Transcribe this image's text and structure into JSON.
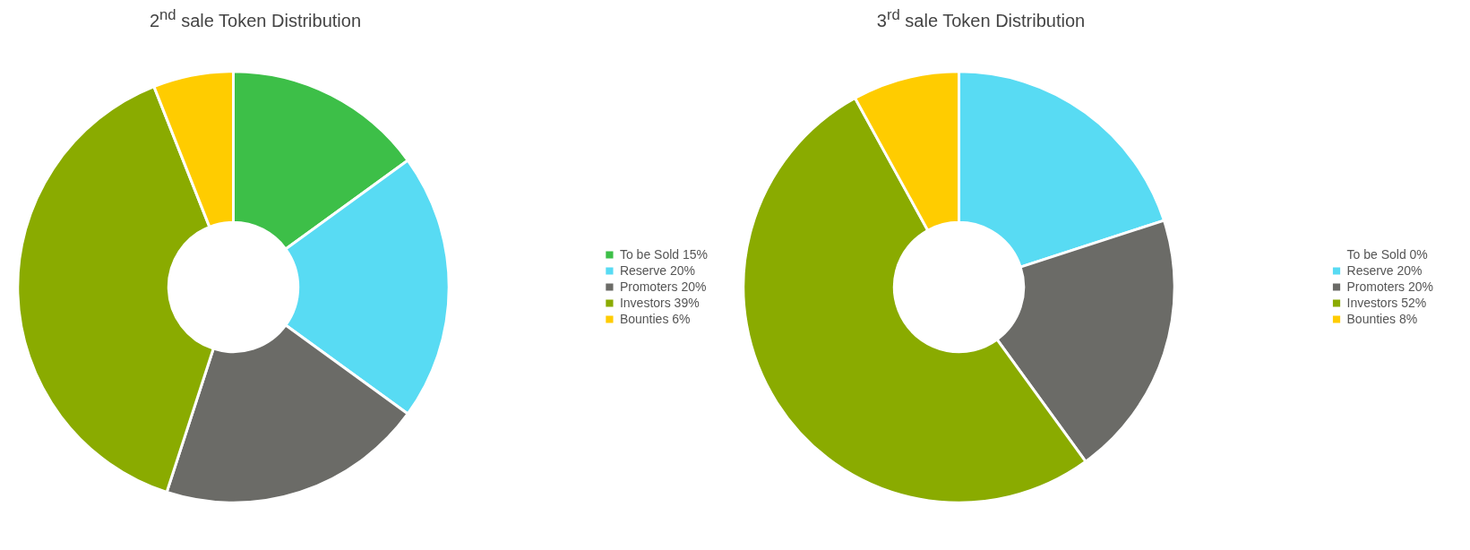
{
  "chart_data": [
    {
      "type": "donut",
      "title": "2$^{nd}$ sale Token Distribution",
      "categories": [
        "To be Sold",
        "Reserve",
        "Promoters",
        "Investors",
        "Bounties"
      ],
      "values": [
        15,
        20,
        20,
        39,
        6
      ],
      "value_labels": [
        "15%",
        "20%",
        "20%",
        "39%",
        "6%"
      ],
      "colors": [
        "#3dbf48",
        "#58dbf3",
        "#6b6b67",
        "#8aab00",
        "#ffcc00"
      ],
      "legend": "right"
    },
    {
      "type": "donut",
      "title": "3$^{rd}$ sale Token Distribution",
      "categories": [
        "To be Sold",
        "Reserve",
        "Promoters",
        "Investors",
        "Bounties"
      ],
      "values": [
        0,
        20,
        20,
        52,
        8
      ],
      "value_labels": [
        "0%",
        "20%",
        "20%",
        "52%",
        "8%"
      ],
      "colors": [
        "#3dbf48",
        "#58dbf3",
        "#6b6b67",
        "#8aab00",
        "#ffcc00"
      ],
      "legend": "right"
    }
  ]
}
